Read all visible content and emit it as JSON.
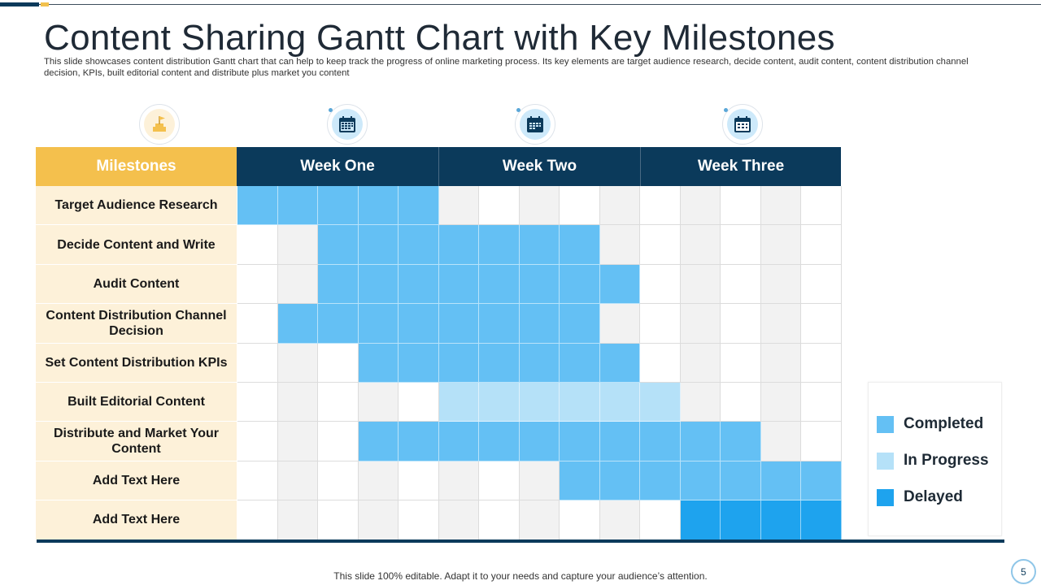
{
  "slide": {
    "title": "Content Sharing Gantt Chart with Key Milestones",
    "subtitle": "This slide showcases content distribution Gantt chart that can help to keep track the progress of online marketing process. Its key elements are target audience research, decide content, audit content, content distribution channel decision, KPIs, built editorial content and distribute plus market you content",
    "footer": "This slide 100% editable. Adapt it to your needs and capture your audience’s attention.",
    "page_number": "5"
  },
  "colors": {
    "completed": "#64c0f4",
    "in_progress": "#b5e1f8",
    "delayed": "#1ea3ee",
    "header_dark": "#0b3a5b",
    "header_gold": "#f4c04d",
    "label_bg": "#fdf1d9",
    "grid_alt": "#f2f2f2"
  },
  "icons": [
    "milestone-flag-icon",
    "calendar-icon",
    "calendar-icon",
    "calendar-icon"
  ],
  "chart_data": {
    "type": "table",
    "title": "Content Sharing Gantt Chart with Key Milestones",
    "headers": [
      "Milestones",
      "Week One",
      "Week Two",
      "Week Three"
    ],
    "days_per_week": 5,
    "rows": [
      {
        "label": "Target Audience Research",
        "segments": [
          {
            "start": 1,
            "end": 5,
            "status": "completed"
          }
        ]
      },
      {
        "label": "Decide Content and Write",
        "segments": [
          {
            "start": 3,
            "end": 9,
            "status": "completed"
          }
        ]
      },
      {
        "label": "Audit Content",
        "segments": [
          {
            "start": 3,
            "end": 10,
            "status": "completed"
          }
        ]
      },
      {
        "label": "Content Distribution Channel Decision",
        "segments": [
          {
            "start": 2,
            "end": 9,
            "status": "completed"
          }
        ]
      },
      {
        "label": "Set Content Distribution KPIs",
        "segments": [
          {
            "start": 4,
            "end": 10,
            "status": "completed"
          }
        ]
      },
      {
        "label": "Built Editorial Content",
        "segments": [
          {
            "start": 6,
            "end": 11,
            "status": "in_progress"
          }
        ]
      },
      {
        "label": "Distribute and Market Your Content",
        "segments": [
          {
            "start": 4,
            "end": 13,
            "status": "completed"
          }
        ]
      },
      {
        "label": "Add Text Here",
        "segments": [
          {
            "start": 9,
            "end": 15,
            "status": "completed"
          }
        ]
      },
      {
        "label": "Add Text Here",
        "segments": [
          {
            "start": 12,
            "end": 15,
            "status": "delayed"
          }
        ]
      }
    ],
    "legend": [
      {
        "label": "Completed",
        "status": "completed"
      },
      {
        "label": "In Progress",
        "status": "in_progress"
      },
      {
        "label": "Delayed",
        "status": "delayed"
      }
    ]
  }
}
